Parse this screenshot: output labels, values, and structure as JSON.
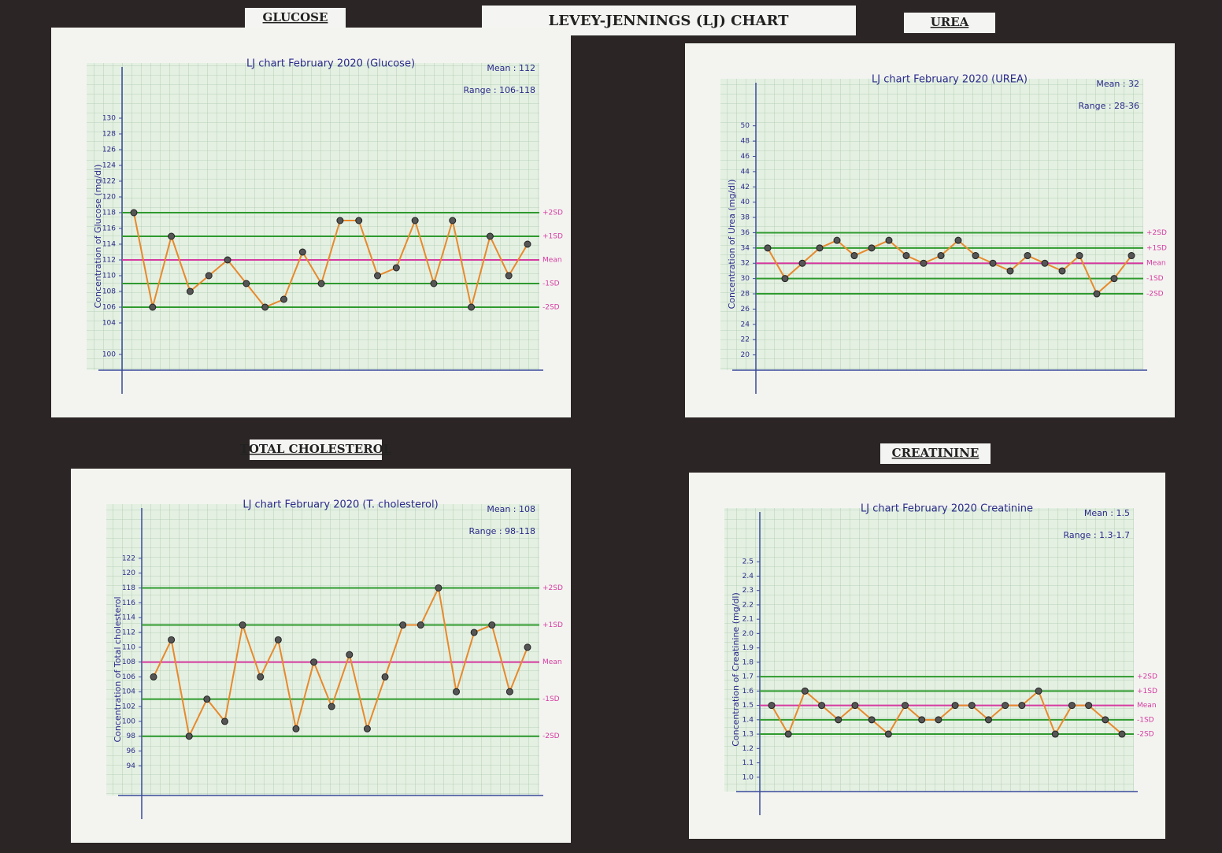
{
  "board_title": "LEVEY-JENNINGS (LJ) CHART",
  "chart_data": [
    {
      "type": "line",
      "heading": "GLUCOSE",
      "title": "LJ chart February 2020 (Glucose)",
      "mean_text": "Mean : 112",
      "range_text": "Range : 106-118",
      "y_label": "Concentration of Glucose (mg/dl)",
      "categories": [
        null,
        null,
        null,
        null,
        null,
        null,
        null,
        null,
        null,
        null,
        null,
        null,
        null,
        null,
        null,
        null,
        null,
        null,
        null,
        null,
        null,
        null
      ],
      "values": [
        118,
        106,
        115,
        108,
        110,
        112,
        109,
        106,
        107,
        113,
        109,
        117,
        117,
        110,
        111,
        117,
        109,
        117,
        106,
        115,
        110,
        114
      ],
      "color": "#e8892b",
      "ylim": [
        98,
        132
      ],
      "yticks": [
        100,
        104,
        106,
        108,
        110,
        112,
        114,
        116,
        118,
        120,
        122,
        124,
        126,
        128,
        130
      ],
      "control_lines": [
        {
          "label": "+2SD",
          "value": 118,
          "color": "#2e9a2e"
        },
        {
          "label": "+1SD",
          "value": 115,
          "color": "#2e9a2e"
        },
        {
          "label": "Mean",
          "value": 112,
          "color": "#d63aa0"
        },
        {
          "label": "-1SD",
          "value": 109,
          "color": "#2e9a2e"
        },
        {
          "label": "-2SD",
          "value": 106,
          "color": "#2e9a2e"
        }
      ]
    },
    {
      "type": "line",
      "heading": "UREA",
      "title": "LJ chart February 2020 (UREA)",
      "mean_text": "Mean : 32",
      "range_text": "Range : 28-36",
      "y_label": "Concentration of Urea (mg/dl)",
      "categories": [
        null,
        null,
        null,
        null,
        null,
        null,
        null,
        null,
        null,
        null,
        null,
        null,
        null,
        null,
        null,
        null,
        null,
        null,
        null,
        null,
        null,
        null
      ],
      "values": [
        34,
        30,
        32,
        34,
        35,
        33,
        34,
        35,
        33,
        32,
        33,
        35,
        33,
        32,
        31,
        33,
        32,
        31,
        33,
        28,
        30,
        33
      ],
      "color": "#e8892b",
      "ylim": [
        18,
        51
      ],
      "yticks": [
        20,
        22,
        24,
        26,
        28,
        30,
        32,
        34,
        36,
        38,
        40,
        42,
        44,
        46,
        48,
        50
      ],
      "control_lines": [
        {
          "label": "+2SD",
          "value": 36,
          "color": "#2e9a2e"
        },
        {
          "label": "+1SD",
          "value": 34,
          "color": "#2e9a2e"
        },
        {
          "label": "Mean",
          "value": 32,
          "color": "#d63aa0"
        },
        {
          "label": "-1SD",
          "value": 30,
          "color": "#2e9a2e"
        },
        {
          "label": "-2SD",
          "value": 28,
          "color": "#2e9a2e"
        }
      ]
    },
    {
      "type": "line",
      "heading": "TOTAL CHOLESTEROL",
      "title": "LJ chart February 2020 (T. cholesterol)",
      "mean_text": "Mean : 108",
      "range_text": "Range : 98-118",
      "y_label": "Concentration of Total cholesterol",
      "categories": [
        null,
        null,
        null,
        null,
        null,
        null,
        null,
        null,
        null,
        null,
        null,
        null,
        null,
        null,
        null,
        null,
        null,
        null,
        null,
        null,
        null,
        null
      ],
      "values": [
        106,
        111,
        98,
        103,
        100,
        113,
        106,
        111,
        99,
        108,
        102,
        109,
        99,
        106,
        113,
        113,
        118,
        104,
        112,
        113,
        104,
        110
      ],
      "color": "#e8892b",
      "ylim": [
        90,
        124
      ],
      "yticks": [
        94,
        96,
        98,
        100,
        102,
        104,
        106,
        108,
        110,
        112,
        114,
        116,
        118,
        120,
        122
      ],
      "control_lines": [
        {
          "label": "+2SD",
          "value": 118,
          "color": "#2e9a2e"
        },
        {
          "label": "+1SD",
          "value": 113,
          "color": "#2e9a2e"
        },
        {
          "label": "Mean",
          "value": 108,
          "color": "#d63aa0"
        },
        {
          "label": "-1SD",
          "value": 103,
          "color": "#2e9a2e"
        },
        {
          "label": "-2SD",
          "value": 98,
          "color": "#2e9a2e"
        }
      ]
    },
    {
      "type": "line",
      "heading": "CREATININE",
      "title": "LJ chart February 2020 Creatinine",
      "mean_text": "Mean : 1.5",
      "range_text": "Range : 1.3-1.7",
      "y_label": "Concentration of Creatinine (mg/dl)",
      "categories": [
        null,
        null,
        null,
        null,
        null,
        null,
        null,
        null,
        null,
        null,
        null,
        null,
        null,
        null,
        null,
        null,
        null,
        null,
        null,
        null,
        null,
        null
      ],
      "values": [
        1.5,
        1.3,
        1.6,
        1.5,
        1.4,
        1.5,
        1.4,
        1.3,
        1.5,
        1.4,
        1.4,
        1.5,
        1.5,
        1.4,
        1.5,
        1.5,
        1.6,
        1.3,
        1.5,
        1.5,
        1.4,
        1.3
      ],
      "color": "#e8892b",
      "ylim": [
        0.9,
        2.6
      ],
      "yticks": [
        {
          "value": 1,
          "label": "1.0"
        },
        1.1,
        1.2,
        1.3,
        1.4,
        1.5,
        1.6,
        1.7,
        1.8,
        1.9,
        {
          "value": 2,
          "label": "2.0"
        },
        2.1,
        2.2,
        2.3,
        2.4,
        2.5
      ],
      "control_lines": [
        {
          "label": "+2SD",
          "value": 1.7,
          "color": "#2e9a2e"
        },
        {
          "label": "+1SD",
          "value": 1.6,
          "color": "#2e9a2e"
        },
        {
          "label": "Mean",
          "value": 1.5,
          "color": "#d63aa0"
        },
        {
          "label": "-1SD",
          "value": 1.4,
          "color": "#2e9a2e"
        },
        {
          "label": "-2SD",
          "value": 1.3,
          "color": "#2e9a2e"
        }
      ]
    }
  ]
}
